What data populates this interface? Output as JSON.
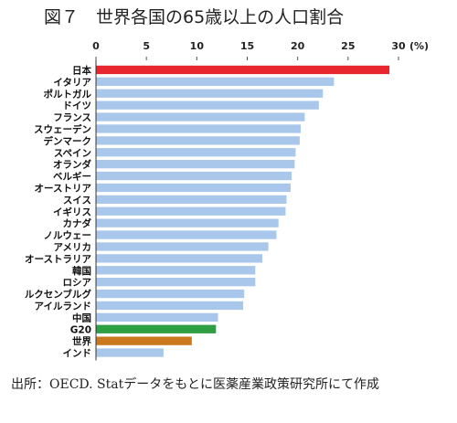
{
  "title": "図７　世界各国の65歳以上の人口割合",
  "source": "出所：OECD. Statデータをもとに医薬産業政策研究所にて作成",
  "colors": {
    "default": "#a9c7ea",
    "highlight_japan": "#e8262e",
    "highlight_g20": "#2ea043",
    "highlight_world": "#c9781d"
  },
  "chart_data": {
    "type": "bar",
    "orientation": "horizontal",
    "x_unit": "(%)",
    "xlim": [
      0,
      30
    ],
    "x_ticks": [
      0,
      5,
      10,
      15,
      20,
      25,
      30
    ],
    "categories": [
      "日本",
      "イタリア",
      "ポルトガル",
      "ドイツ",
      "フランス",
      "スウェーデン",
      "デンマーク",
      "スペイン",
      "オランダ",
      "ベルギー",
      "オーストリア",
      "スイス",
      "イギリス",
      "カナダ",
      "ノルウェー",
      "アメリカ",
      "オーストラリア",
      "韓国",
      "ロシア",
      "ルクセンブルグ",
      "アイルランド",
      "中国",
      "G20",
      "世界",
      "インド"
    ],
    "values": [
      29.1,
      23.6,
      22.5,
      22.1,
      20.7,
      20.3,
      20.2,
      19.8,
      19.7,
      19.4,
      19.3,
      18.9,
      18.8,
      18.1,
      17.9,
      17.1,
      16.5,
      15.8,
      15.8,
      14.7,
      14.6,
      12.1,
      11.9,
      9.5,
      6.7
    ],
    "bar_colors": [
      "highlight_japan",
      "default",
      "default",
      "default",
      "default",
      "default",
      "default",
      "default",
      "default",
      "default",
      "default",
      "default",
      "default",
      "default",
      "default",
      "default",
      "default",
      "default",
      "default",
      "default",
      "default",
      "default",
      "highlight_g20",
      "highlight_world",
      "default"
    ],
    "grid": false
  }
}
